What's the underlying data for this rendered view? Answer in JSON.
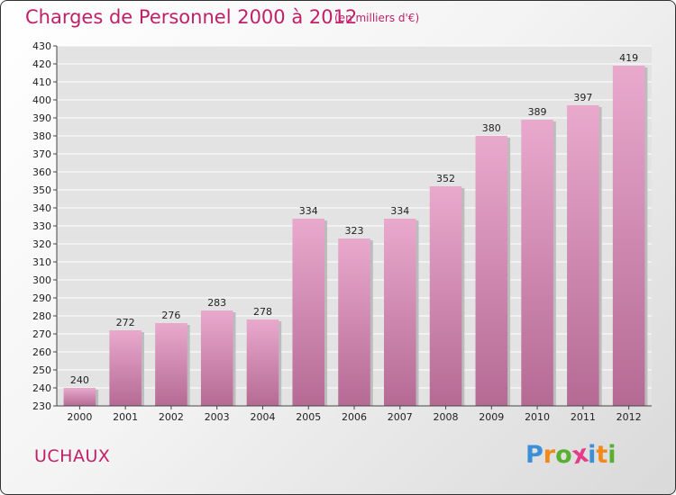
{
  "title": "Charges de Personnel 2000 à 2012",
  "subtitle": "(en milliers d'€)",
  "town": "UCHAUX",
  "logo": {
    "letters": [
      "P",
      "r",
      "o",
      "x",
      "i",
      "t",
      "i"
    ],
    "colors": [
      "#3a8fd6",
      "#f08a1c",
      "#58b030",
      "#e33d8a",
      "#3a8fd6",
      "#f08a1c",
      "#58b030"
    ]
  },
  "chart_data": {
    "type": "bar",
    "categories": [
      "2000",
      "2001",
      "2002",
      "2003",
      "2004",
      "2005",
      "2006",
      "2007",
      "2008",
      "2009",
      "2010",
      "2011",
      "2012"
    ],
    "values": [
      240,
      272,
      276,
      283,
      278,
      334,
      323,
      334,
      352,
      380,
      389,
      397,
      419
    ],
    "ylim": [
      230,
      430
    ],
    "ytick_step": 10,
    "grid": true,
    "bar_color": "#d889b3"
  }
}
